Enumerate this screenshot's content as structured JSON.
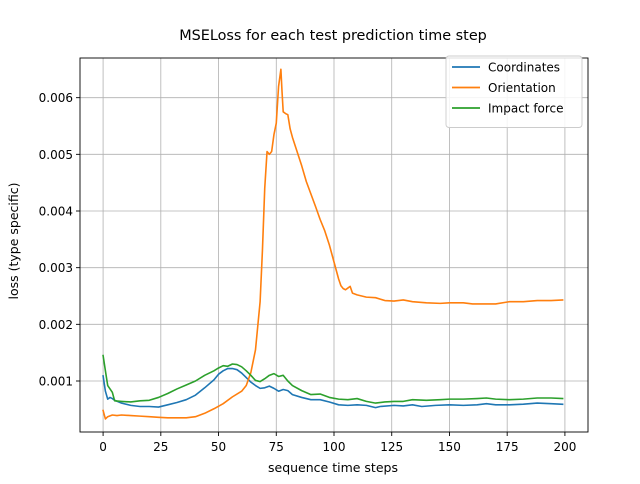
{
  "chart_data": {
    "type": "line",
    "title": "MSELoss for each test prediction time step",
    "xlabel": "sequence time steps",
    "ylabel": "loss (type specific)",
    "xlim": [
      -10,
      210
    ],
    "ylim": [
      0.0001,
      0.0067
    ],
    "xticks": [
      0,
      25,
      50,
      75,
      100,
      125,
      150,
      175,
      200
    ],
    "yticks": [
      0.001,
      0.002,
      0.003,
      0.004,
      0.005,
      0.006
    ],
    "xtick_labels": [
      "0",
      "25",
      "50",
      "75",
      "100",
      "125",
      "150",
      "175",
      "200"
    ],
    "ytick_labels": [
      "0.001",
      "0.002",
      "0.003",
      "0.004",
      "0.005",
      "0.006"
    ],
    "grid": true,
    "legend_position": "top-right",
    "series": [
      {
        "name": "Coordinates",
        "color": "#1f77b4",
        "points": [
          [
            0,
            0.00109
          ],
          [
            1,
            0.00082
          ],
          [
            2,
            0.00068
          ],
          [
            3,
            0.00071
          ],
          [
            4,
            0.00069
          ],
          [
            5,
            0.00066
          ],
          [
            8,
            0.00061
          ],
          [
            12,
            0.00057
          ],
          [
            16,
            0.00055
          ],
          [
            20,
            0.00055
          ],
          [
            24,
            0.00054
          ],
          [
            28,
            0.00058
          ],
          [
            32,
            0.00062
          ],
          [
            36,
            0.00067
          ],
          [
            40,
            0.00075
          ],
          [
            44,
            0.00088
          ],
          [
            48,
            0.00102
          ],
          [
            50,
            0.00112
          ],
          [
            52,
            0.00118
          ],
          [
            54,
            0.00122
          ],
          [
            56,
            0.00122
          ],
          [
            58,
            0.0012
          ],
          [
            60,
            0.00114
          ],
          [
            62,
            0.00106
          ],
          [
            64,
            0.00098
          ],
          [
            66,
            0.00092
          ],
          [
            68,
            0.00087
          ],
          [
            70,
            0.00088
          ],
          [
            72,
            0.00091
          ],
          [
            74,
            0.00087
          ],
          [
            76,
            0.00082
          ],
          [
            78,
            0.00085
          ],
          [
            80,
            0.00083
          ],
          [
            82,
            0.00076
          ],
          [
            86,
            0.00071
          ],
          [
            90,
            0.00067
          ],
          [
            94,
            0.00067
          ],
          [
            98,
            0.00063
          ],
          [
            102,
            0.00058
          ],
          [
            106,
            0.00057
          ],
          [
            110,
            0.00058
          ],
          [
            114,
            0.00057
          ],
          [
            118,
            0.00053
          ],
          [
            120,
            0.00055
          ],
          [
            126,
            0.00057
          ],
          [
            130,
            0.00056
          ],
          [
            134,
            0.00058
          ],
          [
            138,
            0.00055
          ],
          [
            144,
            0.00057
          ],
          [
            150,
            0.00058
          ],
          [
            156,
            0.00057
          ],
          [
            162,
            0.00058
          ],
          [
            166,
            0.0006
          ],
          [
            170,
            0.00058
          ],
          [
            176,
            0.00058
          ],
          [
            182,
            0.00059
          ],
          [
            188,
            0.00061
          ],
          [
            194,
            0.0006
          ],
          [
            199,
            0.00059
          ]
        ]
      },
      {
        "name": "Orientation",
        "color": "#ff7f0e",
        "points": [
          [
            0,
            0.00048
          ],
          [
            1,
            0.00033
          ],
          [
            2,
            0.00037
          ],
          [
            4,
            0.0004
          ],
          [
            6,
            0.00039
          ],
          [
            8,
            0.0004
          ],
          [
            12,
            0.00039
          ],
          [
            16,
            0.00038
          ],
          [
            20,
            0.00037
          ],
          [
            24,
            0.00036
          ],
          [
            28,
            0.00035
          ],
          [
            32,
            0.00035
          ],
          [
            36,
            0.00035
          ],
          [
            40,
            0.00037
          ],
          [
            44,
            0.00043
          ],
          [
            48,
            0.00051
          ],
          [
            52,
            0.0006
          ],
          [
            56,
            0.00072
          ],
          [
            60,
            0.00082
          ],
          [
            62,
            0.00092
          ],
          [
            64,
            0.00115
          ],
          [
            66,
            0.00155
          ],
          [
            68,
            0.0024
          ],
          [
            69,
            0.0033
          ],
          [
            70,
            0.0044
          ],
          [
            71,
            0.00505
          ],
          [
            72,
            0.005
          ],
          [
            73,
            0.00505
          ],
          [
            74,
            0.00535
          ],
          [
            75,
            0.00555
          ],
          [
            76,
            0.0062
          ],
          [
            77,
            0.0065
          ],
          [
            77.5,
            0.0061
          ],
          [
            78,
            0.00575
          ],
          [
            79,
            0.00572
          ],
          [
            80,
            0.0057
          ],
          [
            81,
            0.00545
          ],
          [
            82,
            0.0053
          ],
          [
            84,
            0.00505
          ],
          [
            86,
            0.0048
          ],
          [
            88,
            0.00452
          ],
          [
            90,
            0.0043
          ],
          [
            92,
            0.00408
          ],
          [
            94,
            0.00385
          ],
          [
            96,
            0.00365
          ],
          [
            98,
            0.0034
          ],
          [
            100,
            0.0031
          ],
          [
            101,
            0.00295
          ],
          [
            102,
            0.0028
          ],
          [
            103,
            0.00268
          ],
          [
            104,
            0.00263
          ],
          [
            105,
            0.00261
          ],
          [
            106,
            0.00264
          ],
          [
            107,
            0.00267
          ],
          [
            108,
            0.00255
          ],
          [
            110,
            0.00252
          ],
          [
            114,
            0.00248
          ],
          [
            118,
            0.00247
          ],
          [
            122,
            0.00242
          ],
          [
            126,
            0.00241
          ],
          [
            130,
            0.00243
          ],
          [
            134,
            0.0024
          ],
          [
            140,
            0.00238
          ],
          [
            146,
            0.00237
          ],
          [
            150,
            0.00238
          ],
          [
            156,
            0.00238
          ],
          [
            160,
            0.00236
          ],
          [
            166,
            0.00236
          ],
          [
            170,
            0.00236
          ],
          [
            176,
            0.0024
          ],
          [
            182,
            0.0024
          ],
          [
            188,
            0.00242
          ],
          [
            194,
            0.00242
          ],
          [
            199,
            0.00243
          ]
        ]
      },
      {
        "name": "Impact force",
        "color": "#2ca02c",
        "points": [
          [
            0,
            0.00145
          ],
          [
            1,
            0.00118
          ],
          [
            2,
            0.00092
          ],
          [
            3,
            0.00086
          ],
          [
            4,
            0.0008
          ],
          [
            5,
            0.00065
          ],
          [
            8,
            0.00064
          ],
          [
            12,
            0.00063
          ],
          [
            16,
            0.00065
          ],
          [
            20,
            0.00066
          ],
          [
            24,
            0.00071
          ],
          [
            28,
            0.00078
          ],
          [
            32,
            0.00086
          ],
          [
            36,
            0.00093
          ],
          [
            40,
            0.001
          ],
          [
            44,
            0.0011
          ],
          [
            48,
            0.00118
          ],
          [
            50,
            0.00123
          ],
          [
            52,
            0.00127
          ],
          [
            54,
            0.00126
          ],
          [
            56,
            0.0013
          ],
          [
            58,
            0.00129
          ],
          [
            60,
            0.00125
          ],
          [
            62,
            0.00118
          ],
          [
            64,
            0.0011
          ],
          [
            66,
            0.00101
          ],
          [
            68,
            0.00099
          ],
          [
            70,
            0.00104
          ],
          [
            72,
            0.0011
          ],
          [
            74,
            0.00113
          ],
          [
            76,
            0.00108
          ],
          [
            78,
            0.0011
          ],
          [
            80,
            0.001
          ],
          [
            82,
            0.00092
          ],
          [
            86,
            0.00083
          ],
          [
            90,
            0.00076
          ],
          [
            94,
            0.00077
          ],
          [
            98,
            0.00071
          ],
          [
            102,
            0.00068
          ],
          [
            106,
            0.00067
          ],
          [
            110,
            0.00069
          ],
          [
            114,
            0.00064
          ],
          [
            118,
            0.00061
          ],
          [
            122,
            0.00063
          ],
          [
            126,
            0.00064
          ],
          [
            130,
            0.00064
          ],
          [
            134,
            0.00067
          ],
          [
            140,
            0.00066
          ],
          [
            146,
            0.00067
          ],
          [
            150,
            0.00068
          ],
          [
            156,
            0.00068
          ],
          [
            162,
            0.00069
          ],
          [
            166,
            0.0007
          ],
          [
            170,
            0.00068
          ],
          [
            176,
            0.00067
          ],
          [
            182,
            0.00068
          ],
          [
            188,
            0.0007
          ],
          [
            194,
            0.0007
          ],
          [
            199,
            0.00069
          ]
        ]
      }
    ]
  }
}
